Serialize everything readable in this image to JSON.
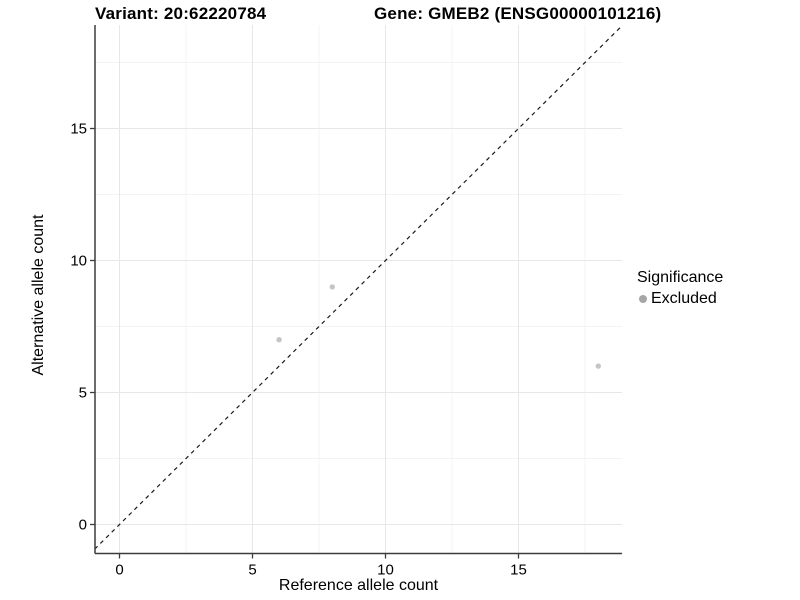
{
  "chart_data": {
    "type": "scatter",
    "variant_title": "Variant: 20:62220784",
    "gene_title": "Gene: GMEB2 (ENSG00000101216)",
    "xlabel": "Reference allele count",
    "ylabel": "Alternative allele count",
    "x_ticks": [
      0,
      5,
      10,
      15
    ],
    "y_ticks": [
      0,
      5,
      10,
      15
    ],
    "xlim": [
      -0.95,
      19.0
    ],
    "ylim": [
      -0.95,
      19.0
    ],
    "grid": "major+minor",
    "series": [
      {
        "name": "Excluded",
        "color": "#c5c5c5",
        "points": [
          {
            "x": 6,
            "y": 7
          },
          {
            "x": 8,
            "y": 9
          },
          {
            "x": 18,
            "y": 6
          }
        ]
      }
    ],
    "reference_line": {
      "type": "abline",
      "slope": 1,
      "intercept": 0,
      "style": "dashed",
      "color": "#1a1a1a"
    },
    "legend": {
      "title": "Significance",
      "position": "right",
      "entries": [
        {
          "label": "Excluded",
          "color": "#a6a6a6"
        }
      ]
    },
    "colors": {
      "grid_major": "#e7e7e7",
      "grid_minor": "#f3f3f3",
      "axis_line": "#3c3c3c",
      "text": "#000000",
      "background": "#ffffff"
    }
  }
}
